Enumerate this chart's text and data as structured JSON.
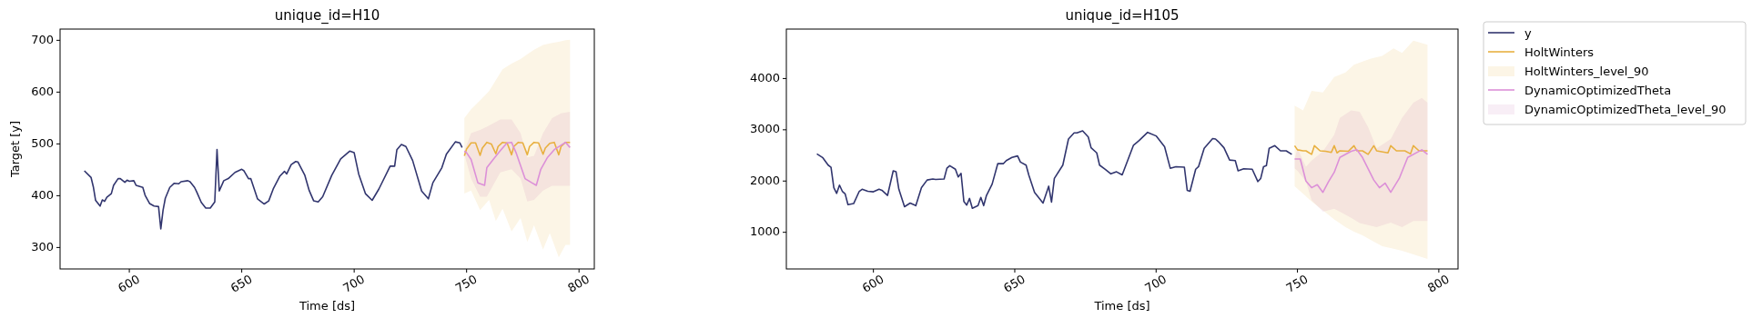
{
  "chart_data": [
    {
      "type": "line",
      "title": "unique_id=H10",
      "xlabel": "Time [ds]",
      "ylabel": "Target [y]",
      "xlim": [
        569.2,
        806.8
      ],
      "ylim": [
        258.6,
        721.7
      ],
      "xticks": [
        600,
        650,
        700,
        750,
        800
      ],
      "yticks": [
        300,
        400,
        500,
        600,
        700
      ],
      "series": [
        {
          "color": "#31356e",
          "x": [
            580,
            583,
            584,
            585,
            587,
            588,
            589,
            590,
            592,
            593,
            595,
            596,
            598,
            599,
            600,
            602,
            603,
            606,
            607,
            609,
            611,
            613,
            614,
            615,
            616,
            618,
            620,
            622,
            623,
            626,
            627,
            629,
            630,
            632,
            634,
            636,
            638,
            639,
            640,
            642,
            644,
            647,
            650,
            651,
            653,
            654,
            657,
            660,
            662,
            664,
            667,
            669,
            670,
            672,
            674,
            675,
            678,
            680,
            682,
            684,
            686,
            690,
            694,
            698,
            700,
            702,
            705,
            708,
            711,
            716,
            718,
            719,
            721,
            723,
            726,
            730,
            733,
            735,
            739,
            741,
            745,
            747,
            748
          ],
          "values": [
            448,
            435,
            417,
            391,
            380,
            392,
            389,
            397,
            404,
            420,
            433,
            433,
            426,
            430,
            428,
            429,
            420,
            416,
            401,
            385,
            380,
            379,
            336,
            372,
            395,
            416,
            424,
            423,
            427,
            429,
            427,
            416,
            407,
            387,
            376,
            376,
            388,
            489,
            409,
            429,
            433,
            445,
            451,
            448,
            433,
            433,
            394,
            384,
            390,
            413,
            438,
            447,
            442,
            460,
            466,
            465,
            440,
            410,
            390,
            388,
            398,
            439,
            471,
            486,
            483,
            442,
            404,
            391,
            413,
            457,
            457,
            489,
            499,
            495,
            468,
            409,
            394,
            425,
            454,
            480,
            504,
            502,
            493
          ]
        },
        {
          "color": "#e8b040",
          "x": [
            749,
            750,
            752,
            754,
            756,
            757,
            759,
            761,
            763,
            764,
            766,
            768,
            770,
            771,
            773,
            775,
            777,
            778,
            780,
            782,
            784,
            785,
            787,
            789,
            791,
            792,
            794,
            796
          ],
          "values": [
            477,
            490,
            502,
            502,
            478,
            492,
            503,
            500,
            481,
            495,
            503,
            502,
            479,
            495,
            503,
            502,
            479,
            495,
            503,
            502,
            480,
            492,
            501,
            503,
            479,
            495,
            503,
            503
          ]
        },
        {
          "type": "area",
          "color": "#fcf5e6",
          "x": [
            749,
            752,
            756,
            760,
            763,
            766,
            770,
            774,
            777,
            780,
            784,
            787,
            791,
            794,
            796
          ],
          "values": [
            null,
            null,
            null,
            null,
            null,
            null,
            null,
            null,
            null,
            null,
            null,
            null,
            null,
            null,
            null
          ],
          "upper": [
            550,
            567,
            584,
            602,
            623,
            644,
            655,
            664,
            673,
            682,
            691,
            694,
            697,
            700,
            701
          ],
          "lower": [
            404,
            410,
            372,
            392,
            351,
            375,
            331,
            357,
            311,
            343,
            296,
            328,
            281,
            305,
            305
          ]
        },
        {
          "color": "#dc90d8",
          "x": [
            749,
            750,
            752,
            755,
            758,
            759,
            762,
            765,
            768,
            770,
            772,
            776,
            779,
            781,
            783,
            786,
            789,
            794,
            796
          ],
          "values": [
            486,
            483,
            470,
            425,
            420,
            454,
            471,
            487,
            502,
            503,
            483,
            433,
            425,
            420,
            451,
            474,
            489,
            503,
            493
          ]
        },
        {
          "type": "area",
          "color": "#f8eef6",
          "x": [
            749,
            752,
            756,
            759,
            765,
            770,
            774,
            777,
            780,
            784,
            788,
            792,
            796
          ],
          "values": [
            null,
            null,
            null,
            null,
            null,
            null,
            null,
            null,
            null,
            null,
            null,
            null,
            null
          ],
          "upper": [
            486,
            521,
            527,
            533,
            547,
            547,
            521,
            474,
            477,
            521,
            550,
            559,
            562
          ],
          "lower": [
            480,
            433,
            398,
            398,
            445,
            451,
            433,
            389,
            392,
            410,
            419,
            419,
            419
          ]
        }
      ]
    },
    {
      "type": "line",
      "title": "unique_id=H105",
      "xlabel": "Time [ds]",
      "xlim": [
        569.2,
        806.8
      ],
      "ylim": [
        285,
        4965
      ],
      "xticks": [
        600,
        650,
        700,
        750,
        800
      ],
      "yticks": [
        1000,
        2000,
        3000,
        4000
      ],
      "legend": "right",
      "series": [
        {
          "name": "y",
          "color": "#31356e",
          "x": [
            580,
            582,
            584,
            585,
            586,
            587,
            588,
            589,
            590,
            591,
            593,
            595,
            596,
            598,
            600,
            602,
            603,
            605,
            607,
            608,
            609,
            611,
            613,
            615,
            617,
            619,
            621,
            622,
            625,
            626,
            627,
            629,
            630,
            631,
            632,
            633,
            634,
            635,
            637,
            638,
            639,
            640,
            642,
            644,
            646,
            647,
            649,
            651,
            652,
            654,
            655,
            657,
            660,
            662,
            663,
            664,
            667,
            669,
            671,
            672,
            674,
            676,
            677,
            679,
            680,
            682,
            684,
            686,
            688,
            692,
            694,
            697,
            700,
            703,
            705,
            707,
            710,
            711,
            712,
            714,
            715,
            717,
            720,
            721,
            722,
            724,
            726,
            728,
            729,
            731,
            734,
            736,
            737,
            738,
            739,
            740,
            742,
            744,
            746,
            748
          ],
          "values": [
            2530,
            2460,
            2310,
            2270,
            1870,
            1760,
            1920,
            1800,
            1750,
            1540,
            1560,
            1800,
            1840,
            1800,
            1790,
            1840,
            1820,
            1720,
            2200,
            2180,
            1840,
            1500,
            1570,
            1520,
            1870,
            2020,
            2040,
            2030,
            2040,
            2250,
            2300,
            2230,
            2080,
            2150,
            1600,
            1530,
            1660,
            1470,
            1520,
            1680,
            1520,
            1720,
            1940,
            2340,
            2340,
            2400,
            2460,
            2490,
            2370,
            2310,
            2110,
            1780,
            1570,
            1900,
            1590,
            2050,
            2310,
            2820,
            2940,
            2940,
            2980,
            2860,
            2650,
            2550,
            2310,
            2230,
            2140,
            2180,
            2120,
            2700,
            2790,
            2950,
            2880,
            2670,
            2250,
            2280,
            2270,
            1820,
            1800,
            2230,
            2280,
            2640,
            2830,
            2820,
            2770,
            2650,
            2410,
            2400,
            2200,
            2240,
            2230,
            1990,
            2050,
            2280,
            2300,
            2640,
            2690,
            2590,
            2590,
            2520
          ]
        },
        {
          "name": "HoltWinters",
          "color": "#e8b040",
          "x": [
            749,
            750,
            752,
            753,
            755,
            756,
            758,
            760,
            762,
            763,
            764,
            765,
            768,
            770,
            771,
            773,
            775,
            777,
            778,
            782,
            783,
            785,
            788,
            790,
            791,
            793,
            796
          ],
          "values": [
            2690,
            2610,
            2590,
            2590,
            2520,
            2690,
            2590,
            2580,
            2560,
            2690,
            2550,
            2590,
            2580,
            2690,
            2590,
            2590,
            2520,
            2690,
            2590,
            2550,
            2690,
            2590,
            2590,
            2530,
            2690,
            2590,
            2590
          ]
        },
        {
          "name": "HoltWinters_level_90",
          "type": "area",
          "color": "#fcf5e6",
          "x": [
            749,
            752,
            755,
            759,
            763,
            767,
            770,
            773,
            776,
            780,
            784,
            787,
            791,
            796
          ],
          "values": [
            null,
            null,
            null,
            null,
            null,
            null,
            null,
            null,
            null,
            null,
            null,
            null,
            null,
            null
          ],
          "upper": [
            3470,
            3380,
            3760,
            3730,
            4030,
            4120,
            4270,
            4330,
            4390,
            4440,
            4590,
            4500,
            4740,
            4660
          ],
          "lower": [
            1900,
            1750,
            1600,
            1430,
            1250,
            1100,
            1010,
            940,
            850,
            730,
            680,
            640,
            570,
            480
          ]
        },
        {
          "name": "DynamicOptimizedTheta",
          "color": "#dc90d8",
          "x": [
            749,
            751,
            753,
            755,
            757,
            759,
            761,
            763,
            765,
            769,
            771,
            773,
            777,
            779,
            781,
            783,
            786,
            789,
            794,
            796
          ],
          "values": [
            2430,
            2430,
            2000,
            1870,
            1930,
            1780,
            1990,
            2170,
            2460,
            2580,
            2610,
            2460,
            2020,
            1870,
            1960,
            1780,
            2050,
            2460,
            2610,
            2520
          ]
        },
        {
          "name": "DynamicOptimizedTheta_level_90",
          "type": "area",
          "color": "#f8eef6",
          "x": [
            749,
            750,
            753,
            755,
            759,
            763,
            765,
            769,
            772,
            775,
            778,
            783,
            787,
            791,
            794,
            796
          ],
          "values": [
            null,
            null,
            null,
            null,
            null,
            null,
            null,
            null,
            null,
            null,
            null,
            null,
            null,
            null,
            null,
            null
          ],
          "upper": [
            2430,
            2640,
            2280,
            2400,
            2580,
            2900,
            3230,
            3380,
            3350,
            3050,
            2640,
            2820,
            3230,
            3530,
            3620,
            3530
          ],
          "lower": [
            2250,
            2200,
            1990,
            1630,
            1400,
            1460,
            1400,
            1280,
            1180,
            1140,
            1100,
            1190,
            1100,
            1220,
            1220,
            1220
          ]
        }
      ]
    }
  ]
}
